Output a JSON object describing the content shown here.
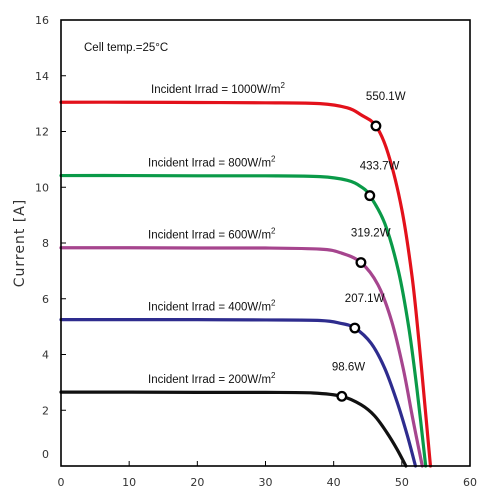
{
  "chart_data": {
    "type": "line",
    "title": "",
    "xlabel": "",
    "ylabel": "Current [A]",
    "xlim": [
      0,
      60
    ],
    "ylim": [
      0,
      16
    ],
    "x_ticks": [
      "0",
      "10",
      "20",
      "30",
      "40",
      "50",
      "60"
    ],
    "y_ticks": [
      "0",
      "2",
      "4",
      "6",
      "8",
      "10",
      "12",
      "14",
      "16"
    ],
    "grid": false,
    "note": "Cell temp.=25°C",
    "series": [
      {
        "name": "Incident Irrad = 1000W/m2",
        "color": "#e3111b",
        "isc": 13.05,
        "voc": 54.2,
        "mpp": {
          "x": 46.2,
          "y": 12.2,
          "label": "550.1W"
        },
        "label_main": "Incident Irrad = 1000W/m",
        "label_sup": "2",
        "points": [
          [
            0,
            13.05
          ],
          [
            10,
            13.05
          ],
          [
            20,
            13.04
          ],
          [
            30,
            13.03
          ],
          [
            38,
            13.0
          ],
          [
            42,
            12.85
          ],
          [
            44,
            12.6
          ],
          [
            46.2,
            12.2
          ],
          [
            48,
            11.2
          ],
          [
            50,
            9.2
          ],
          [
            51.5,
            6.8
          ],
          [
            52.5,
            4.5
          ],
          [
            53.3,
            2.4
          ],
          [
            54.2,
            0
          ]
        ]
      },
      {
        "name": "Incident Irrad = 800W/m2",
        "color": "#0a9a48",
        "isc": 10.42,
        "voc": 53.5,
        "mpp": {
          "x": 45.3,
          "y": 9.7,
          "label": "433.7W"
        },
        "label_main": "Incident Irrad = 800W/m",
        "label_sup": "2",
        "points": [
          [
            0,
            10.42
          ],
          [
            10,
            10.42
          ],
          [
            20,
            10.41
          ],
          [
            30,
            10.41
          ],
          [
            38,
            10.38
          ],
          [
            42,
            10.25
          ],
          [
            44,
            10.02
          ],
          [
            45.3,
            9.7
          ],
          [
            47.5,
            8.7
          ],
          [
            49.5,
            7.0
          ],
          [
            51,
            5.0
          ],
          [
            52.2,
            2.8
          ],
          [
            53.5,
            0
          ]
        ]
      },
      {
        "name": "Incident Irrad = 600W/m2",
        "color": "#a6458e",
        "isc": 7.83,
        "voc": 53.0,
        "mpp": {
          "x": 44.0,
          "y": 7.3,
          "label": "319.2W"
        },
        "label_main": "Incident Irrad = 600W/m",
        "label_sup": "2",
        "points": [
          [
            0,
            7.83
          ],
          [
            10,
            7.83
          ],
          [
            20,
            7.82
          ],
          [
            30,
            7.82
          ],
          [
            38,
            7.78
          ],
          [
            41,
            7.65
          ],
          [
            44.0,
            7.3
          ],
          [
            46.5,
            6.5
          ],
          [
            48.5,
            5.2
          ],
          [
            50.2,
            3.5
          ],
          [
            51.6,
            1.7
          ],
          [
            53.0,
            0
          ]
        ]
      },
      {
        "name": "Incident Irrad = 400W/m2",
        "color": "#2e2c8e",
        "isc": 5.25,
        "voc": 52.0,
        "mpp": {
          "x": 43.1,
          "y": 4.95,
          "label": "207.1W"
        },
        "label_main": "Incident Irrad = 400W/m",
        "label_sup": "2",
        "points": [
          [
            0,
            5.25
          ],
          [
            10,
            5.25
          ],
          [
            20,
            5.25
          ],
          [
            30,
            5.24
          ],
          [
            38,
            5.22
          ],
          [
            41,
            5.12
          ],
          [
            43.1,
            4.95
          ],
          [
            45.5,
            4.4
          ],
          [
            47.5,
            3.5
          ],
          [
            49.3,
            2.3
          ],
          [
            50.8,
            1.1
          ],
          [
            52.0,
            0
          ]
        ]
      },
      {
        "name": "Incident Irrad = 200W/m2",
        "color": "#111111",
        "isc": 2.65,
        "voc": 50.6,
        "mpp": {
          "x": 41.2,
          "y": 2.5,
          "label": "98.6W"
        },
        "label_main": "Incident Irrad = 200W/m",
        "label_sup": "2",
        "points": [
          [
            0,
            2.65
          ],
          [
            10,
            2.65
          ],
          [
            20,
            2.64
          ],
          [
            30,
            2.64
          ],
          [
            37,
            2.62
          ],
          [
            41.2,
            2.5
          ],
          [
            44,
            2.2
          ],
          [
            46,
            1.8
          ],
          [
            47.8,
            1.2
          ],
          [
            49.3,
            0.6
          ],
          [
            50.6,
            0
          ]
        ]
      }
    ]
  }
}
